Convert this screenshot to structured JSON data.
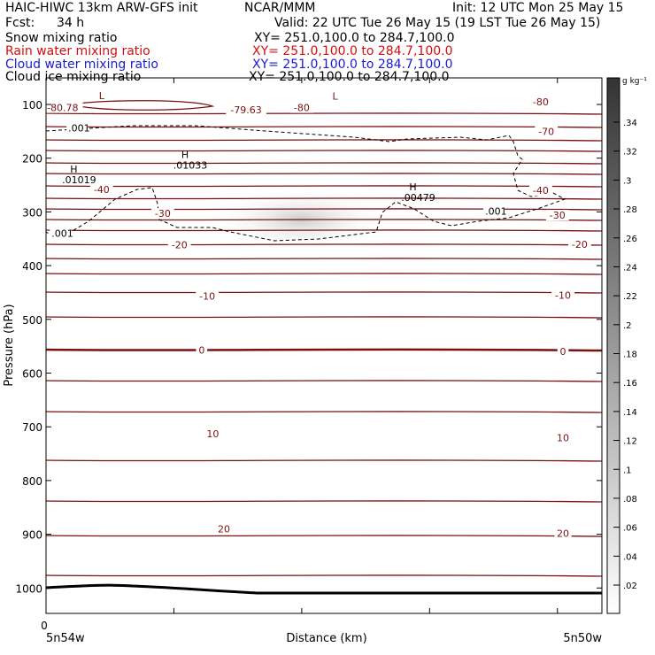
{
  "header": {
    "model": "HAIC-HIWC 13km ARW-GFS init",
    "org": "NCAR/MMM",
    "init": "Init: 12 UTC Mon 25 May 15",
    "fcst_label": "Fcst:",
    "fcst_value": "34 h",
    "valid": "Valid: 22 UTC Tue 26 May 15 (19 LST Tue 26 May 15)",
    "fields": [
      {
        "name": "Snow mixing ratio",
        "xs": "XY= 251.0,100.0 to 284.7,100.0",
        "color": "#000000"
      },
      {
        "name": "Rain water mixing ratio",
        "xs": "XY= 251.0,100.0 to 284.7,100.0",
        "color": "#d01010"
      },
      {
        "name": "Cloud water mixing ratio",
        "xs": "XY= 251.0,100.0 to 284.7,100.0",
        "color": "#1a1ad0"
      },
      {
        "name": "Cloud ice mixing ratio",
        "xs": "XY= 251.0,100.0 to 284.7,100.0",
        "color": "#000000"
      }
    ]
  },
  "chart_data": {
    "type": "cross-section",
    "ylabel": "Pressure (hPa)",
    "xlabel": "Distance (km)",
    "x_origin_label": "0",
    "x_left_label": "5n54w",
    "x_right_label": "5n50w",
    "y_ticks": [
      100,
      200,
      300,
      400,
      500,
      600,
      700,
      800,
      900,
      1000
    ],
    "ylim": [
      1050,
      65
    ],
    "temperature_contour_labels": [
      {
        "text": "-80",
        "x": 0.46,
        "p": 106
      },
      {
        "text": "-80",
        "x": 0.89,
        "p": 95
      },
      {
        "text": "-80.78",
        "x": 0.03,
        "p": 106
      },
      {
        "text": "-79.63",
        "x": 0.36,
        "p": 110
      },
      {
        "text": "-70",
        "x": 0.9,
        "p": 150
      },
      {
        "text": "-40",
        "x": 0.1,
        "p": 258
      },
      {
        "text": "-40",
        "x": 0.89,
        "p": 260
      },
      {
        "text": "-30",
        "x": 0.21,
        "p": 303
      },
      {
        "text": "-30",
        "x": 0.92,
        "p": 306
      },
      {
        "text": "-20",
        "x": 0.24,
        "p": 361
      },
      {
        "text": "-20",
        "x": 0.96,
        "p": 360
      },
      {
        "text": "-10",
        "x": 0.29,
        "p": 457
      },
      {
        "text": "-10",
        "x": 0.93,
        "p": 455
      },
      {
        "text": "0",
        "x": 0.28,
        "p": 557
      },
      {
        "text": "0",
        "x": 0.93,
        "p": 560
      },
      {
        "text": "10",
        "x": 0.3,
        "p": 713
      },
      {
        "text": "10",
        "x": 0.93,
        "p": 720
      },
      {
        "text": "20",
        "x": 0.32,
        "p": 890
      },
      {
        "text": "20",
        "x": 0.93,
        "p": 898
      }
    ],
    "extrema_labels": [
      {
        "kind": "L",
        "x": 0.1,
        "p": 90
      },
      {
        "kind": "L",
        "x": 0.52,
        "p": 91
      },
      {
        "kind": "H",
        "value": ".01033",
        "x": 0.25,
        "p": 200
      },
      {
        "kind": "H",
        "value": ".01019",
        "x": 0.05,
        "p": 227
      },
      {
        "kind": "H",
        "value": ".00479",
        "x": 0.66,
        "p": 260
      }
    ],
    "ice_contour_labels": [
      {
        "text": ".001",
        "x": 0.04,
        "p": 147
      },
      {
        "text": ".001",
        "x": 0.01,
        "p": 343
      },
      {
        "text": ".001",
        "x": 0.79,
        "p": 302
      }
    ],
    "colorbar": {
      "unit": "g kg⁻¹",
      "ticks": [
        ".34",
        ".32",
        ".3",
        ".28",
        ".26",
        ".24",
        ".22",
        ".2",
        ".18",
        ".16",
        ".14",
        ".12",
        ".1",
        ".08",
        ".06",
        ".04",
        ".02"
      ]
    }
  }
}
